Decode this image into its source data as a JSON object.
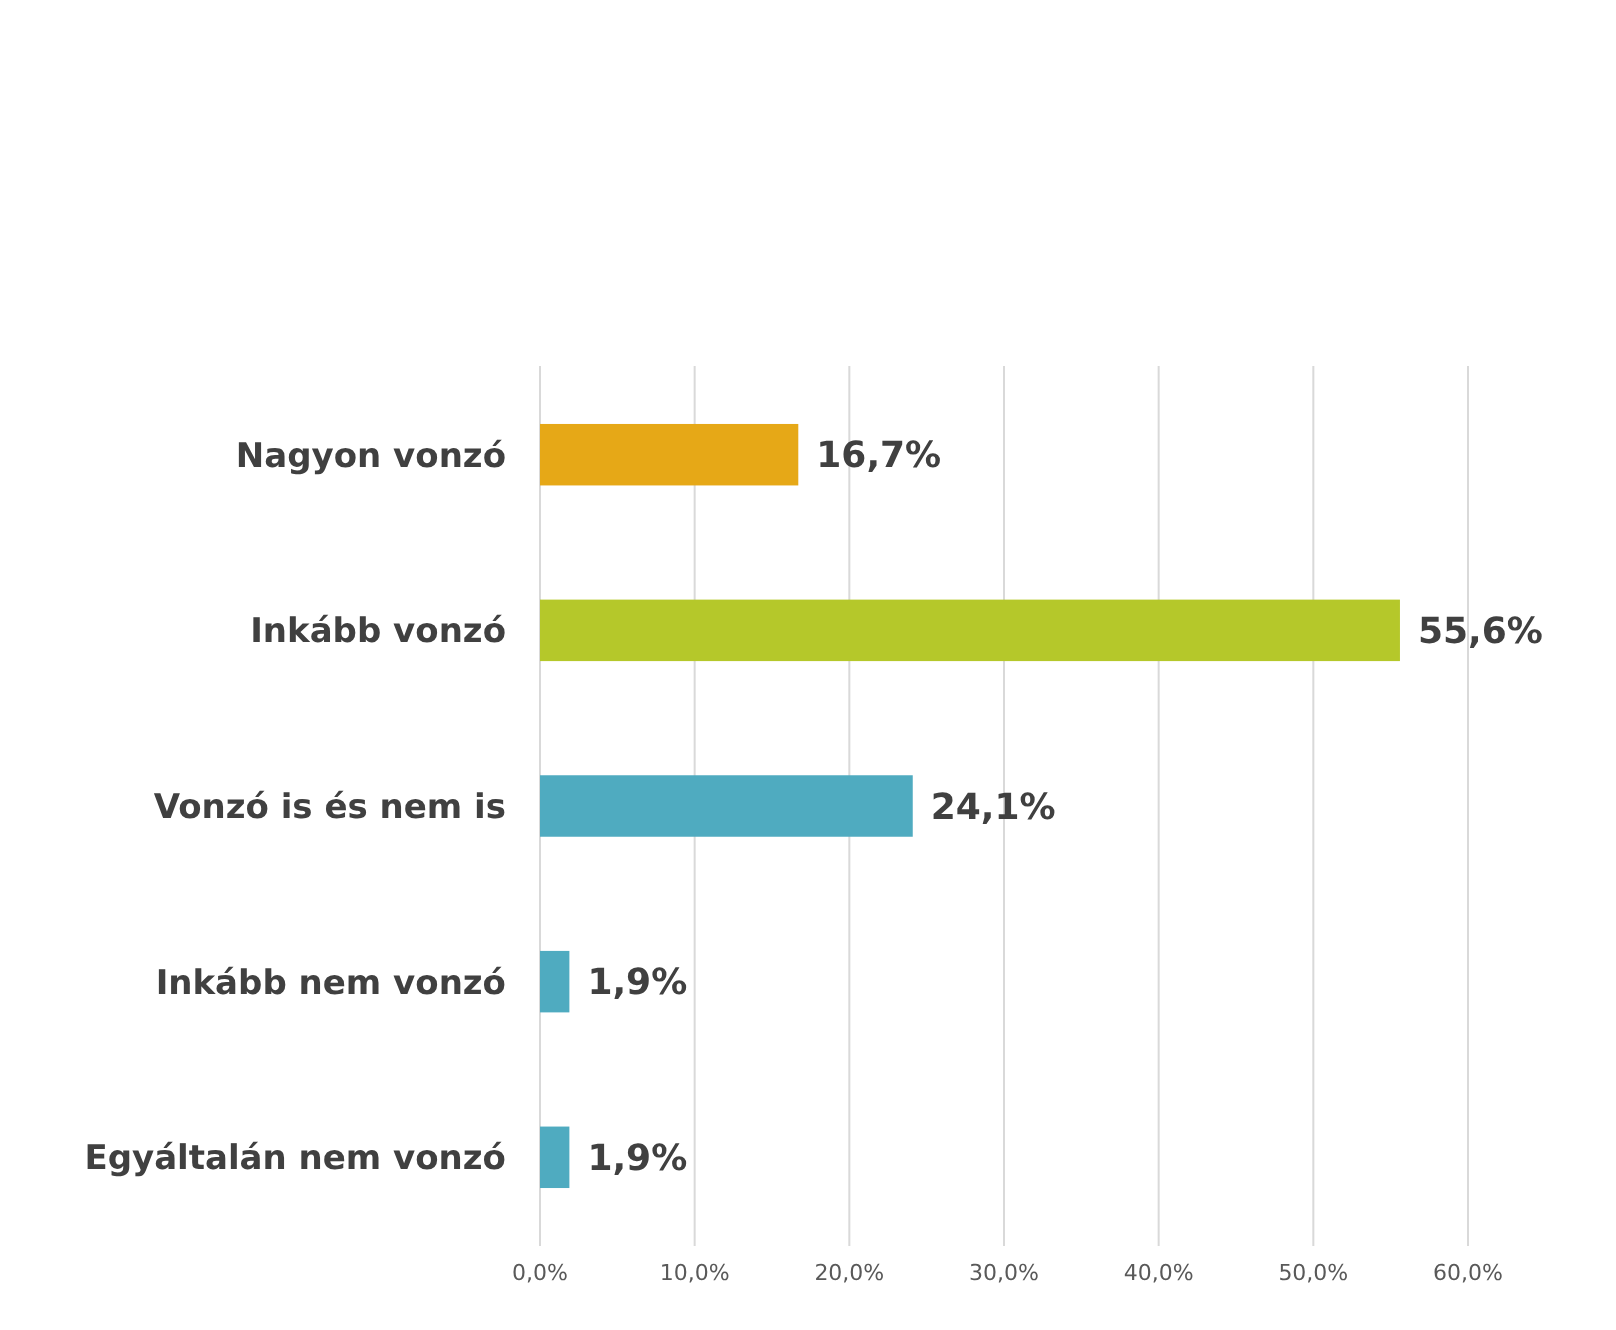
{
  "chart_data": {
    "type": "bar",
    "orientation": "horizontal",
    "categories": [
      "Nagyon vonzó",
      "Inkább vonzó",
      "Vonzó is és nem is",
      "Inkább nem vonzó",
      "Egyáltalán nem vonzó"
    ],
    "values": [
      16.7,
      55.6,
      24.1,
      1.9,
      1.9
    ],
    "colors": [
      "#e6a817",
      "#b5c82a",
      "#4fabc0",
      "#4fabc0",
      "#4fabc0"
    ],
    "value_labels": [
      "16,7%",
      "55,6%",
      "24,1%",
      "1,9%",
      "1,9%"
    ],
    "xlim": [
      0,
      60
    ],
    "xticks": [
      {
        "value": 0,
        "label": "0,0%"
      },
      {
        "value": 10,
        "label": "10,0%"
      },
      {
        "value": 20,
        "label": "20,0%"
      },
      {
        "value": 30,
        "label": "30,0%"
      },
      {
        "value": 40,
        "label": "40,0%"
      },
      {
        "value": 50,
        "label": "50,0%"
      },
      {
        "value": 60,
        "label": "60,0%"
      }
    ],
    "grid": "x"
  }
}
